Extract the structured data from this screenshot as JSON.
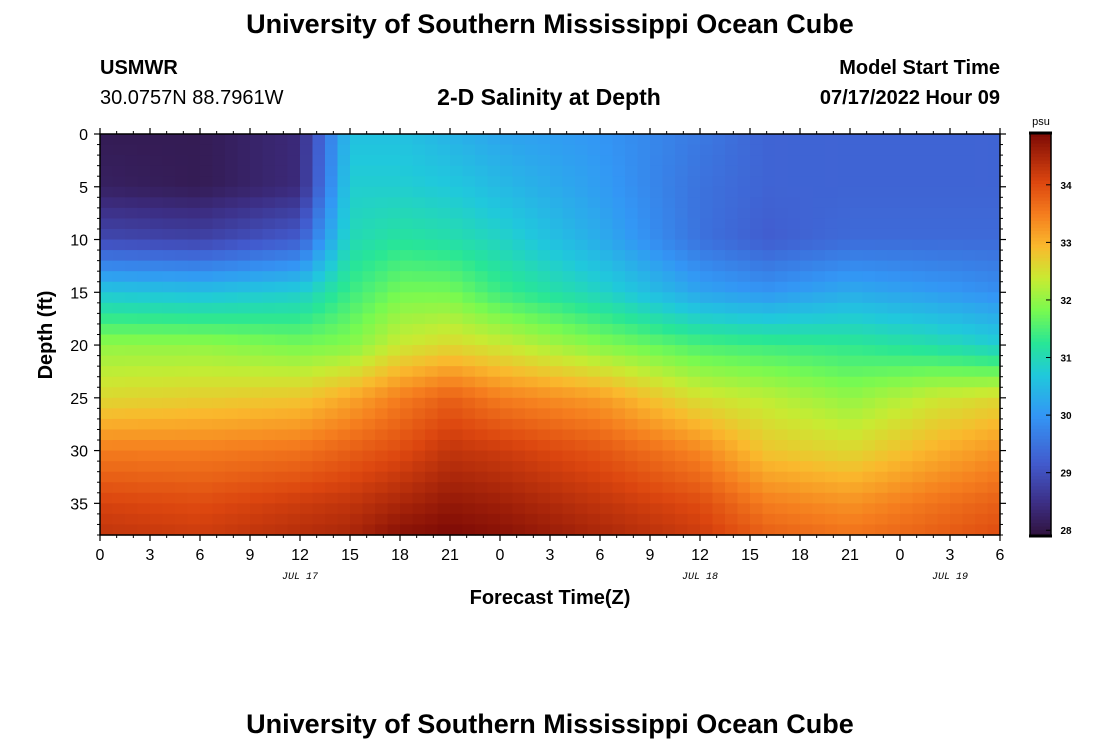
{
  "page": {
    "title_top": "University of Southern Mississippi Ocean Cube",
    "title_bottom": "University of Southern Mississippi Ocean Cube",
    "station_id": "USMWR",
    "station_coords": "30.0757N  88.7961W",
    "plot_title": "2-D Salinity at Depth",
    "model_start_label": "Model Start Time",
    "model_start_time": "07/17/2022 Hour 09"
  },
  "chart_data": {
    "type": "heatmap",
    "title": "2-D Salinity at Depth",
    "xlabel": "Forecast Time(Z)",
    "ylabel": "Depth (ft)",
    "x_range_hours": [
      0,
      54
    ],
    "x_tick_labels": [
      "0",
      "3",
      "6",
      "9",
      "12",
      "15",
      "18",
      "21",
      "0",
      "3",
      "6",
      "9",
      "12",
      "15",
      "18",
      "21",
      "0",
      "3",
      "6"
    ],
    "date_labels": [
      {
        "label": "JUL 17",
        "at_hour": 12
      },
      {
        "label": "JUL 18",
        "at_hour": 36
      },
      {
        "label": "JUL 19",
        "at_hour": 51
      }
    ],
    "y_range_ft": [
      0,
      38
    ],
    "y_tick_values": [
      0,
      5,
      10,
      15,
      20,
      25,
      30,
      35
    ],
    "colorbar": {
      "unit": "psu",
      "range": [
        27.9,
        34.9
      ],
      "tick_values": [
        28,
        29,
        30,
        31,
        32,
        33,
        34
      ]
    },
    "depth_levels_ft": [
      0,
      5,
      10,
      15,
      20,
      25,
      30,
      35,
      38
    ],
    "profiles": [
      {
        "hour": 0,
        "salinity": [
          28.1,
          28.2,
          28.9,
          30.7,
          32.0,
          32.6,
          33.5,
          34.1,
          34.3
        ]
      },
      {
        "hour": 6,
        "salinity": [
          28.1,
          28.1,
          28.8,
          30.6,
          32.0,
          32.7,
          33.5,
          34.0,
          34.2
        ]
      },
      {
        "hour": 12,
        "salinity": [
          28.4,
          28.4,
          29.2,
          30.8,
          31.8,
          32.8,
          33.6,
          34.2,
          34.4
        ]
      },
      {
        "hour": 15,
        "salinity": [
          30.6,
          30.8,
          31.0,
          31.4,
          31.9,
          33.1,
          33.8,
          34.3,
          34.5
        ]
      },
      {
        "hour": 18,
        "salinity": [
          30.6,
          30.8,
          31.2,
          31.8,
          32.4,
          33.5,
          34.0,
          34.5,
          34.8
        ]
      },
      {
        "hour": 21,
        "salinity": [
          30.4,
          30.7,
          31.1,
          31.8,
          32.6,
          33.8,
          34.3,
          34.7,
          34.9
        ]
      },
      {
        "hour": 24,
        "salinity": [
          30.2,
          30.5,
          30.9,
          31.4,
          32.4,
          33.5,
          34.2,
          34.6,
          34.8
        ]
      },
      {
        "hour": 30,
        "salinity": [
          30.0,
          30.1,
          30.3,
          30.9,
          31.9,
          33.2,
          33.9,
          34.3,
          34.5
        ]
      },
      {
        "hour": 36,
        "salinity": [
          29.6,
          29.5,
          29.5,
          30.2,
          31.5,
          32.5,
          33.4,
          34.0,
          34.2
        ]
      },
      {
        "hour": 40,
        "salinity": [
          29.3,
          29.3,
          29.2,
          30.0,
          31.4,
          32.3,
          32.8,
          33.5,
          33.8
        ]
      },
      {
        "hour": 45,
        "salinity": [
          29.3,
          29.3,
          29.4,
          30.3,
          31.3,
          32.0,
          32.6,
          33.3,
          33.6
        ]
      },
      {
        "hour": 50,
        "salinity": [
          29.3,
          29.3,
          29.4,
          30.1,
          31.1,
          32.4,
          33.0,
          33.6,
          33.8
        ]
      },
      {
        "hour": 54,
        "salinity": [
          29.3,
          29.3,
          29.4,
          29.9,
          30.8,
          32.6,
          33.3,
          33.8,
          34.0
        ]
      }
    ]
  }
}
